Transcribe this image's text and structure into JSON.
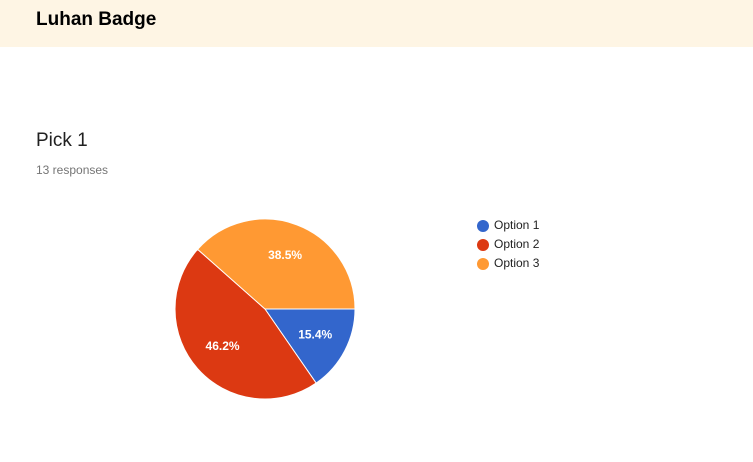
{
  "header": {
    "title": "Luhan Badge"
  },
  "chart_data": {
    "type": "pie",
    "title": "Pick 1",
    "subtitle": "13 responses",
    "categories": [
      "Option 1",
      "Option 2",
      "Option 3"
    ],
    "values": [
      15.4,
      46.2,
      38.5
    ],
    "value_labels": [
      "15.4%",
      "46.2%",
      "38.5%"
    ],
    "colors": [
      "#3366cc",
      "#dc3912",
      "#ff9933"
    ]
  }
}
